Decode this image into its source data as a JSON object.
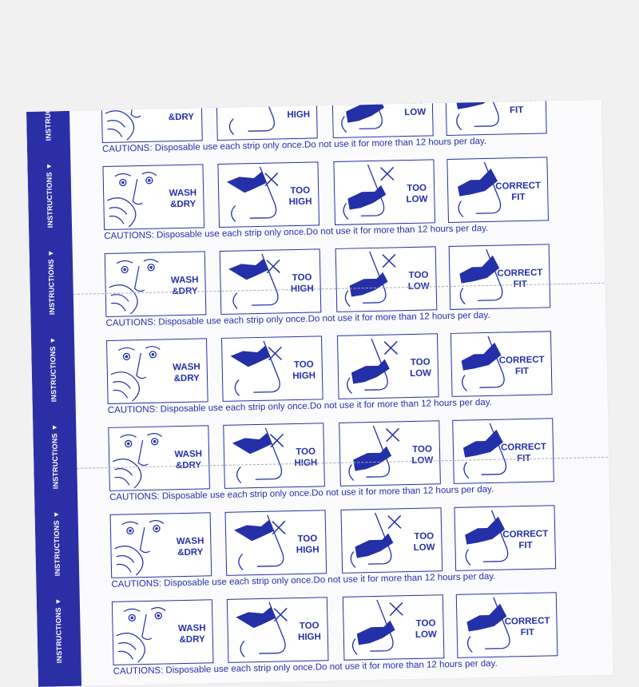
{
  "band_label": "INSTRUCTIONS ▼",
  "panels": [
    {
      "label": "WASH\n&DRY",
      "icon": "face-washing-icon"
    },
    {
      "label": "TOO\nHIGH",
      "icon": "nose-strip-too-high-icon"
    },
    {
      "label": "TOO\nLOW",
      "icon": "nose-strip-too-low-icon"
    },
    {
      "label": "CORRECT\nFIT",
      "icon": "nose-strip-correct-icon"
    }
  ],
  "caution": "CAUTIONS: Disposable use each strip only once.Do not use it for more than 12 hours per day.",
  "colors": {
    "ink": "#2430a8",
    "band": "#2b2fa6",
    "background": "#f1f1f1"
  },
  "row_count": 7
}
